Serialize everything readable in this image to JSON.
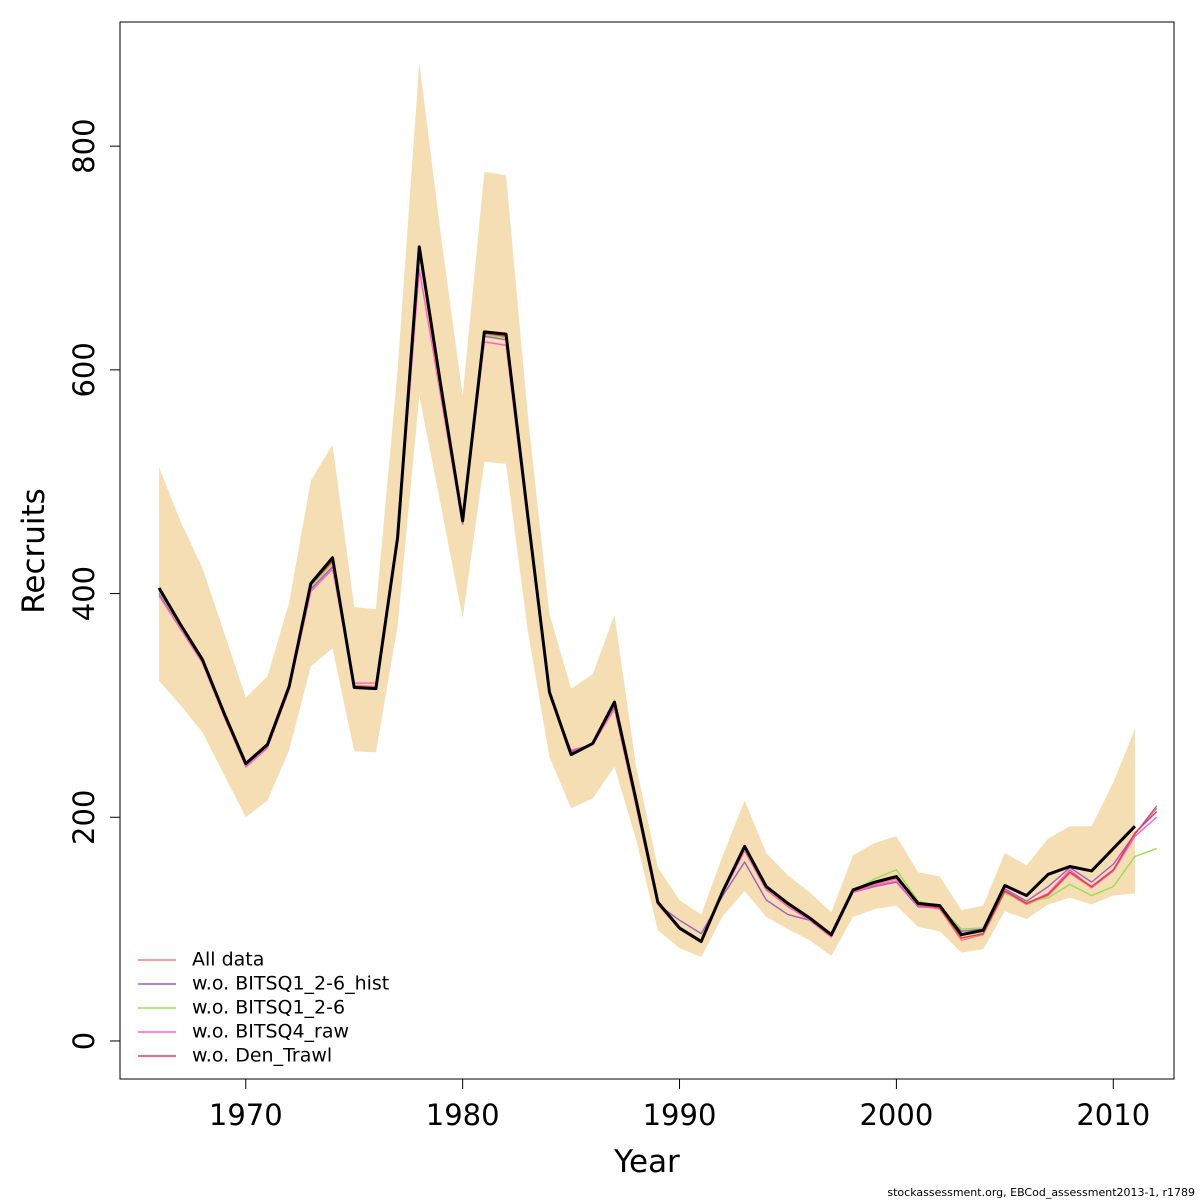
{
  "chart_data": {
    "type": "line",
    "x_label": "Year",
    "y_label": "Recruits",
    "footer": "stockassessment.org, EBCod_assessment2013-1, r1789",
    "x": [
      1966,
      1967,
      1968,
      1969,
      1970,
      1971,
      1972,
      1973,
      1974,
      1975,
      1976,
      1977,
      1978,
      1979,
      1980,
      1981,
      1982,
      1983,
      1984,
      1985,
      1986,
      1987,
      1988,
      1989,
      1990,
      1991,
      1992,
      1993,
      1994,
      1995,
      1996,
      1997,
      1998,
      1999,
      2000,
      2001,
      2002,
      2003,
      2004,
      2005,
      2006,
      2007,
      2008,
      2009,
      2010,
      2011,
      2012
    ],
    "band": {
      "color": "#f5deb3",
      "upper": [
        513,
        464,
        423,
        365,
        307,
        326,
        392,
        501,
        533,
        388,
        386,
        600,
        875,
        720,
        577,
        777,
        774,
        560,
        382,
        315,
        328,
        381,
        245,
        155,
        126,
        113,
        166,
        215,
        168,
        148,
        133,
        115,
        166,
        177,
        183,
        151,
        147,
        117,
        121,
        168,
        157,
        181,
        192,
        192,
        231,
        279,
        null
      ],
      "lower": [
        322,
        300,
        276,
        238,
        200,
        215,
        260,
        335,
        351,
        259,
        258,
        371,
        577,
        478,
        378,
        518,
        516,
        367,
        254,
        208,
        217,
        245,
        180,
        99,
        83,
        75,
        112,
        134,
        111,
        100,
        90,
        76,
        111,
        118,
        121,
        102,
        98,
        79,
        82,
        116,
        109,
        122,
        128,
        122,
        130,
        132,
        null
      ]
    },
    "series": [
      {
        "name": "All data",
        "color": "#f08080",
        "values": [
          403,
          371,
          340,
          292,
          246,
          264,
          316,
          407,
          428,
          318,
          317,
          449,
          708,
          584,
          464,
          632,
          629,
          468,
          311,
          258,
          266,
          301,
          213,
          123,
          100,
          88,
          133,
          172,
          136,
          121,
          108,
          93,
          134,
          140,
          145,
          122,
          118,
          90,
          95,
          133,
          122,
          130,
          150,
          137,
          152,
          185,
          208
        ]
      },
      {
        "name": "w.o. BITSQ1_2-6_hist",
        "color": "#9e5fc0",
        "values": [
          400,
          369,
          339,
          291,
          246,
          263,
          315,
          404,
          424,
          316,
          315,
          447,
          705,
          580,
          462,
          630,
          627,
          466,
          310,
          259,
          265,
          298,
          210,
          122,
          108,
          96,
          130,
          160,
          126,
          113,
          108,
          93,
          133,
          138,
          142,
          120,
          119,
          98,
          100,
          136,
          125,
          138,
          155,
          142,
          158,
          185,
          210
        ]
      },
      {
        "name": "w.o. BITSQ1_2-6",
        "color": "#99dd55",
        "values": [
          402,
          370,
          340,
          292,
          247,
          264,
          316,
          406,
          427,
          317,
          316,
          449,
          707,
          583,
          464,
          631,
          629,
          468,
          311,
          257,
          266,
          301,
          213,
          123,
          100,
          89,
          133,
          172,
          136,
          121,
          109,
          94,
          134,
          145,
          153,
          125,
          120,
          100,
          101,
          132,
          124,
          128,
          140,
          130,
          138,
          165,
          172
        ]
      },
      {
        "name": "w.o. BITSQ4_raw",
        "color": "#ff5fc8",
        "values": [
          398,
          368,
          338,
          290,
          245,
          262,
          314,
          402,
          422,
          320,
          320,
          445,
          690,
          575,
          462,
          625,
          622,
          464,
          309,
          260,
          265,
          297,
          210,
          122,
          100,
          88,
          132,
          170,
          135,
          120,
          108,
          93,
          133,
          139,
          143,
          121,
          118,
          96,
          98,
          135,
          123,
          132,
          153,
          137,
          152,
          183,
          200
        ]
      },
      {
        "name": "w.o. Den_Trawl",
        "color": "#e8384f",
        "values": [
          404,
          371,
          340,
          292,
          247,
          264,
          316,
          408,
          429,
          317,
          316,
          449,
          709,
          584,
          464,
          633,
          630,
          469,
          311,
          256,
          266,
          302,
          214,
          123,
          100,
          88,
          133,
          173,
          137,
          122,
          109,
          94,
          134,
          141,
          146,
          122,
          119,
          92,
          96,
          134,
          123,
          131,
          151,
          138,
          153,
          186,
          205
        ]
      },
      {
        "color": "#000000",
        "values": [
          405,
          372,
          341,
          293,
          248,
          265,
          317,
          409,
          432,
          316,
          315,
          450,
          710,
          585,
          465,
          634,
          632,
          470,
          312,
          256,
          266,
          303,
          215,
          124,
          101,
          89,
          134,
          174,
          138,
          123,
          110,
          95,
          135,
          142,
          147,
          123,
          121,
          95,
          99,
          139,
          130,
          149,
          156,
          152,
          172,
          192,
          null
        ]
      }
    ],
    "xlim": [
      1964.2,
      2012.8
    ],
    "ylim": [
      -34,
      911
    ],
    "xticks": [
      1970,
      1980,
      1990,
      2000,
      2010
    ],
    "yticks": [
      0,
      200,
      400,
      600,
      800
    ]
  }
}
